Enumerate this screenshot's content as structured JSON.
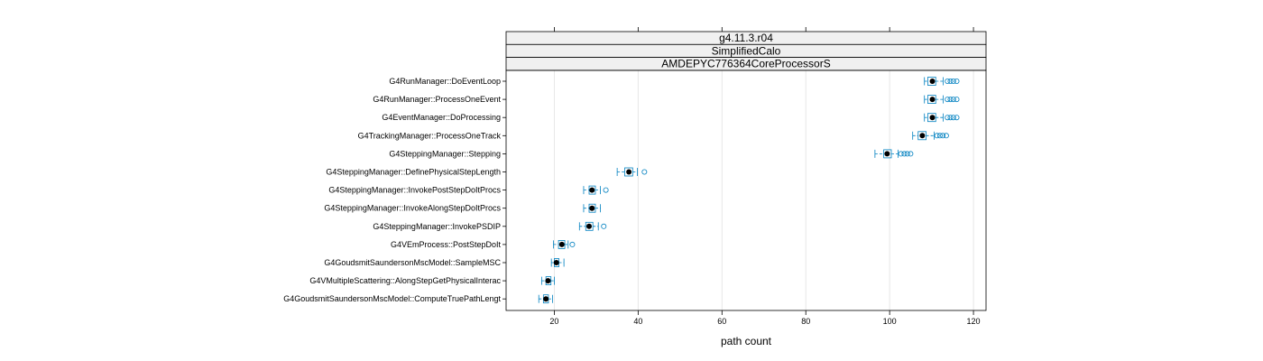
{
  "chart_data": {
    "type": "boxplot",
    "strips": [
      "g4.11.3.r04",
      "SimplifiedCalo",
      "AMDEPYC776364CoreProcessorS"
    ],
    "xlabel": "path count",
    "xlim": [
      8.5,
      123
    ],
    "xticks": [
      20,
      40,
      60,
      80,
      100,
      120
    ],
    "grid": true,
    "colors": {
      "box": "#0080c0",
      "median": "#000000",
      "strip": "#f0f0f0",
      "grid": "#e6e6e6"
    },
    "categories": [
      "G4RunManager::DoEventLoop",
      "G4RunManager::ProcessOneEvent",
      "G4EventManager::DoProcessing",
      "G4TrackingManager::ProcessOneTrack",
      "G4SteppingManager::Stepping",
      "G4SteppingManager::DefinePhysicalStepLength",
      "G4SteppingManager::InvokePostStepDoItProcs",
      "G4SteppingManager::InvokeAlongStepDoItProcs",
      "G4SteppingManager::InvokePSDIP",
      "G4VEmProcess::PostStepDoIt",
      "G4GoudsmitSaundersonMscModel::SampleMSC",
      "G4VMultipleScattering::AlongStepGetPhysicalInterac",
      "G4GoudsmitSaundersonMscModel::ComputeTruePathLengt"
    ],
    "boxes": [
      {
        "min": 108.3,
        "q1": 109.1,
        "median": 110.2,
        "q3": 111.0,
        "max": 112.8,
        "outliers": [
          113.8,
          114.5,
          115.2,
          116.0
        ]
      },
      {
        "min": 108.3,
        "q1": 109.1,
        "median": 110.2,
        "q3": 111.0,
        "max": 112.8,
        "outliers": [
          113.8,
          114.5,
          115.2,
          116.0
        ]
      },
      {
        "min": 108.3,
        "q1": 109.1,
        "median": 110.2,
        "q3": 111.0,
        "max": 112.8,
        "outliers": [
          113.8,
          114.5,
          115.2,
          116.0
        ]
      },
      {
        "min": 105.5,
        "q1": 106.8,
        "median": 107.8,
        "q3": 108.7,
        "max": 110.6,
        "outliers": [
          111.3,
          112.0,
          112.7,
          113.5
        ]
      },
      {
        "min": 96.5,
        "q1": 98.6,
        "median": 99.4,
        "q3": 100.4,
        "max": 102.0,
        "outliers": [
          102.7,
          103.5,
          104.2,
          105.0
        ]
      },
      {
        "min": 35.0,
        "q1": 36.8,
        "median": 37.8,
        "q3": 38.7,
        "max": 39.8,
        "outliers": [
          41.5
        ]
      },
      {
        "min": 27.0,
        "q1": 28.3,
        "median": 29.0,
        "q3": 29.8,
        "max": 31.0,
        "outliers": [
          32.3
        ]
      },
      {
        "min": 27.0,
        "q1": 28.3,
        "median": 29.0,
        "q3": 29.8,
        "max": 31.0,
        "outliers": []
      },
      {
        "min": 26.0,
        "q1": 27.5,
        "median": 28.3,
        "q3": 29.2,
        "max": 30.5,
        "outliers": [
          31.8
        ]
      },
      {
        "min": 19.8,
        "q1": 21.0,
        "median": 21.8,
        "q3": 22.5,
        "max": 23.3,
        "outliers": [
          24.3
        ]
      },
      {
        "min": 19.3,
        "q1": 20.0,
        "median": 20.5,
        "q3": 21.1,
        "max": 22.3,
        "outliers": []
      },
      {
        "min": 17.0,
        "q1": 18.0,
        "median": 18.5,
        "q3": 19.2,
        "max": 20.0,
        "outliers": []
      },
      {
        "min": 16.3,
        "q1": 17.4,
        "median": 18.0,
        "q3": 18.6,
        "max": 19.6,
        "outliers": []
      }
    ]
  }
}
